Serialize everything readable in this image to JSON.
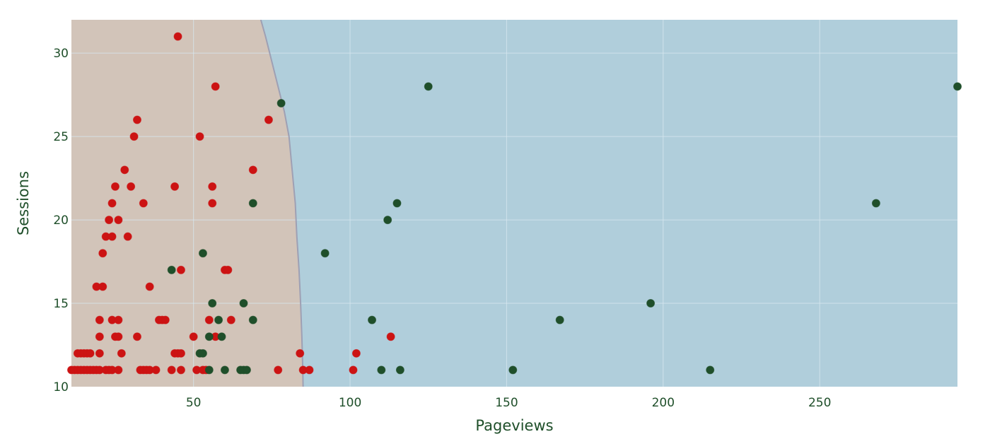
{
  "chart_data": {
    "type": "scatter",
    "title": "",
    "xlabel": "Pageviews",
    "ylabel": "Sessions",
    "xlim": [
      11,
      294
    ],
    "ylim": [
      10,
      32
    ],
    "x_ticks": [
      50,
      100,
      150,
      200,
      250
    ],
    "y_ticks": [
      10,
      15,
      20,
      25,
      30
    ],
    "x_tick_labels": [
      "50",
      "100",
      "150",
      "200",
      "250"
    ],
    "y_tick_labels": [
      "10",
      "15",
      "20",
      "25",
      "30"
    ],
    "grid": true,
    "legend": "none",
    "decision_region": {
      "boundary_points": [
        [
          71.5,
          32
        ],
        [
          73,
          31
        ],
        [
          75,
          29.5
        ],
        [
          77,
          28
        ],
        [
          79,
          26.5
        ],
        [
          80.5,
          25
        ],
        [
          81.5,
          23
        ],
        [
          82.5,
          21
        ],
        [
          83,
          19
        ],
        [
          83.7,
          17
        ],
        [
          84.2,
          15
        ],
        [
          84.6,
          13
        ],
        [
          84.9,
          11
        ],
        [
          85,
          10
        ]
      ],
      "inner_class_color": "#d2c4b9",
      "outer_class_color": "#b0cedb",
      "boundary_color": "#9ea0b4"
    },
    "series": [
      {
        "name": "red",
        "color": "#cc1313",
        "points": [
          [
            11,
            11
          ],
          [
            12,
            11
          ],
          [
            13,
            11
          ],
          [
            13,
            12
          ],
          [
            14,
            11
          ],
          [
            14,
            12
          ],
          [
            15,
            11
          ],
          [
            15,
            12
          ],
          [
            16,
            11
          ],
          [
            16,
            12
          ],
          [
            17,
            11
          ],
          [
            17,
            12
          ],
          [
            18,
            11
          ],
          [
            19,
            11
          ],
          [
            19,
            16
          ],
          [
            20,
            11
          ],
          [
            20,
            12
          ],
          [
            20,
            13
          ],
          [
            20,
            14
          ],
          [
            21,
            16
          ],
          [
            21,
            18
          ],
          [
            22,
            11
          ],
          [
            22,
            19
          ],
          [
            23,
            11
          ],
          [
            23,
            20
          ],
          [
            24,
            11
          ],
          [
            24,
            19
          ],
          [
            24,
            21
          ],
          [
            24,
            14
          ],
          [
            25,
            22
          ],
          [
            25,
            13
          ],
          [
            26,
            11
          ],
          [
            26,
            13
          ],
          [
            26,
            14
          ],
          [
            26,
            20
          ],
          [
            27,
            12
          ],
          [
            28,
            23
          ],
          [
            29,
            19
          ],
          [
            30,
            22
          ],
          [
            31,
            25
          ],
          [
            32,
            26
          ],
          [
            32,
            13
          ],
          [
            33,
            11
          ],
          [
            34,
            11
          ],
          [
            34,
            21
          ],
          [
            35,
            11
          ],
          [
            36,
            16
          ],
          [
            36,
            11
          ],
          [
            38,
            11
          ],
          [
            39,
            14
          ],
          [
            40,
            14
          ],
          [
            41,
            14
          ],
          [
            43,
            11
          ],
          [
            44,
            12
          ],
          [
            44,
            22
          ],
          [
            45,
            31
          ],
          [
            45,
            12
          ],
          [
            46,
            11
          ],
          [
            46,
            17
          ],
          [
            46,
            12
          ],
          [
            50,
            13
          ],
          [
            51,
            11
          ],
          [
            52,
            25
          ],
          [
            53,
            11
          ],
          [
            54,
            11
          ],
          [
            55,
            14
          ],
          [
            56,
            22
          ],
          [
            56,
            21
          ],
          [
            57,
            13
          ],
          [
            57,
            28
          ],
          [
            60,
            17
          ],
          [
            61,
            17
          ],
          [
            62,
            14
          ],
          [
            69,
            23
          ],
          [
            74,
            26
          ],
          [
            77,
            11
          ],
          [
            84,
            12
          ],
          [
            85,
            11
          ],
          [
            87,
            11
          ],
          [
            101,
            11
          ],
          [
            102,
            12
          ],
          [
            113,
            13
          ]
        ]
      },
      {
        "name": "green",
        "color": "#1f4f2a",
        "points": [
          [
            43,
            17
          ],
          [
            52,
            12
          ],
          [
            53,
            12
          ],
          [
            53,
            18
          ],
          [
            55,
            11
          ],
          [
            55,
            13
          ],
          [
            56,
            15
          ],
          [
            58,
            14
          ],
          [
            59,
            13
          ],
          [
            60,
            11
          ],
          [
            65,
            11
          ],
          [
            66,
            11
          ],
          [
            66,
            15
          ],
          [
            67,
            11
          ],
          [
            69,
            21
          ],
          [
            69,
            14
          ],
          [
            78,
            27
          ],
          [
            92,
            18
          ],
          [
            107,
            14
          ],
          [
            110,
            11
          ],
          [
            112,
            20
          ],
          [
            115,
            21
          ],
          [
            116,
            11
          ],
          [
            125,
            28
          ],
          [
            152,
            11
          ],
          [
            167,
            14
          ],
          [
            196,
            15
          ],
          [
            215,
            11
          ],
          [
            268,
            21
          ],
          [
            294,
            28
          ]
        ]
      }
    ]
  },
  "colors": {
    "tick_text": "#1f4f2a",
    "axis_title": "#1f4f2a",
    "gridline": "#d7e7ef"
  }
}
